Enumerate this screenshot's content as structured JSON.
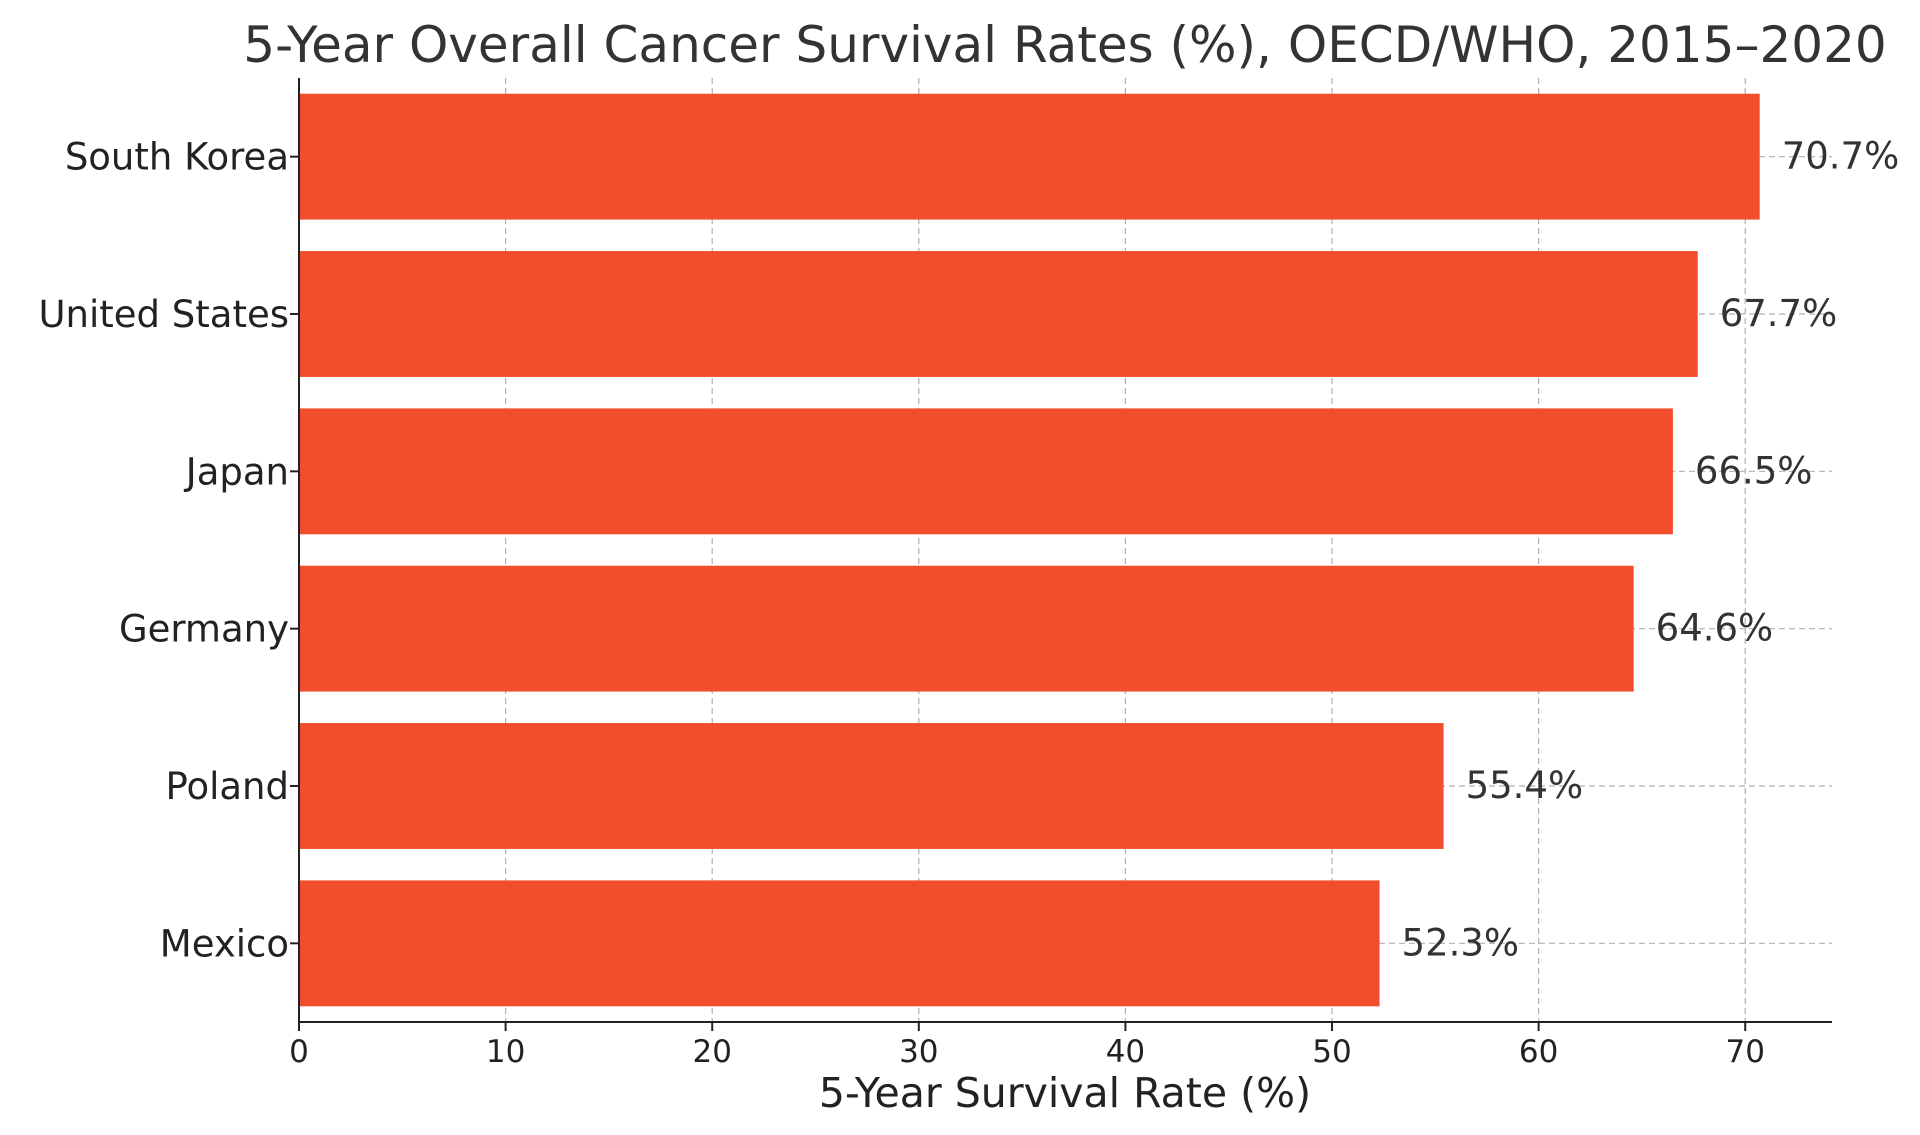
{
  "chart_data": {
    "type": "bar",
    "orientation": "horizontal",
    "title": "5-Year Overall Cancer Survival Rates (%), OECD/WHO, 2015–2020",
    "xlabel": "5-Year Survival Rate (%)",
    "ylabel": "",
    "categories": [
      "South Korea",
      "United States",
      "Japan",
      "Germany",
      "Poland",
      "Mexico"
    ],
    "values": [
      70.7,
      67.7,
      66.5,
      64.6,
      55.4,
      52.3
    ],
    "data_labels": [
      "70.7%",
      "67.7%",
      "66.5%",
      "64.6%",
      "55.4%",
      "52.3%"
    ],
    "xticks": [
      0,
      10,
      20,
      30,
      40,
      50,
      60,
      70
    ],
    "xlim": [
      0,
      74.2
    ],
    "grid": true,
    "bar_color": "#f24e2e"
  }
}
